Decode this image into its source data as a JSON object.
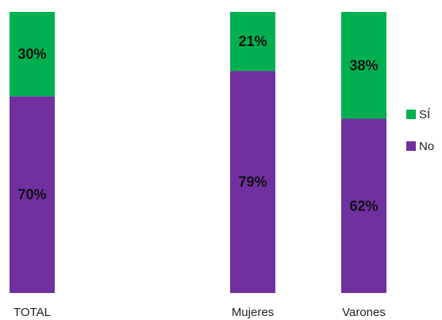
{
  "chart_data": {
    "type": "bar",
    "stacked": true,
    "percent_stacked": true,
    "categories": [
      "TOTAL",
      "Mujeres",
      "Varones"
    ],
    "series": [
      {
        "name": "No",
        "color": "#7030a0",
        "values": [
          70,
          79,
          62
        ],
        "labels": [
          "70%",
          "79%",
          "62%"
        ]
      },
      {
        "name": "SÍ",
        "color": "#00b050",
        "values": [
          30,
          21,
          38
        ],
        "labels": [
          "30%",
          "21%",
          "38%"
        ]
      }
    ],
    "ylim": [
      0,
      100
    ],
    "grid": false,
    "legend_position": "right",
    "legend": [
      {
        "name": "SÍ",
        "color": "#00b050"
      },
      {
        "name": "No",
        "color": "#7030a0"
      }
    ]
  }
}
